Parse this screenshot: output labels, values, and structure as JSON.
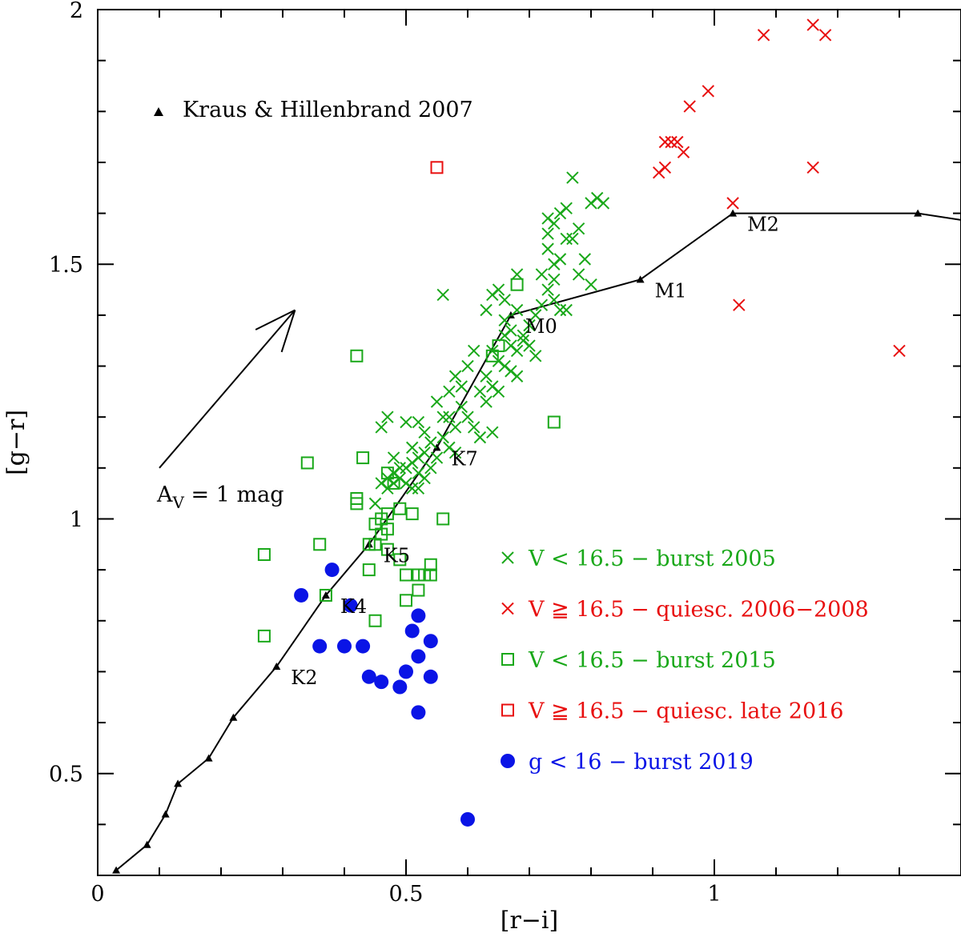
{
  "chart_data": {
    "type": "scatter",
    "xlabel": "[r−i]",
    "ylabel": "[g−r]",
    "xlim": [
      0,
      1.4
    ],
    "ylim": [
      0.3,
      2.0
    ],
    "xticks": [
      {
        "v": 0,
        "label": "0"
      },
      {
        "v": 0.5,
        "label": "0.5"
      },
      {
        "v": 1,
        "label": "1"
      }
    ],
    "yticks": [
      {
        "v": 0.5,
        "label": "0.5"
      },
      {
        "v": 1,
        "label": "1"
      },
      {
        "v": 1.5,
        "label": "1.5"
      },
      {
        "v": 2,
        "label": "2"
      }
    ],
    "annotations": {
      "reddening_label_main": "A",
      "reddening_label_sub": "V",
      "reddening_label_rest": " = 1 mag",
      "reddening_vector": {
        "from": [
          0.1,
          1.1
        ],
        "to": [
          0.32,
          1.41
        ]
      }
    },
    "colors": {
      "green": "#1aa81a",
      "red": "#e81010",
      "blue": "#0a14e6",
      "black": "#000000"
    },
    "kh_legend": "Kraus & Hillenbrand 2007",
    "sequence": {
      "name": "Kraus & Hillenbrand 2007",
      "points": [
        [
          0.03,
          0.31
        ],
        [
          0.08,
          0.36
        ],
        [
          0.11,
          0.42
        ],
        [
          0.13,
          0.48
        ],
        [
          0.18,
          0.53
        ],
        [
          0.22,
          0.61
        ],
        [
          0.29,
          0.71
        ],
        [
          0.37,
          0.85
        ],
        [
          0.44,
          0.95
        ],
        [
          0.55,
          1.14
        ],
        [
          0.67,
          1.4
        ],
        [
          0.88,
          1.47
        ],
        [
          1.03,
          1.6
        ],
        [
          1.33,
          1.6
        ],
        [
          1.4,
          1.587
        ]
      ],
      "spt_labels": [
        {
          "text": "K2",
          "x": 0.29,
          "y": 0.71
        },
        {
          "text": "K4",
          "x": 0.37,
          "y": 0.85
        },
        {
          "text": "K5",
          "x": 0.44,
          "y": 0.95
        },
        {
          "text": "K7",
          "x": 0.55,
          "y": 1.14
        },
        {
          "text": "M0",
          "x": 0.67,
          "y": 1.4
        },
        {
          "text": "M1",
          "x": 0.88,
          "y": 1.47
        },
        {
          "text": "M2",
          "x": 1.03,
          "y": 1.6
        }
      ]
    },
    "series": [
      {
        "name": "V < 16.5 − burst 2005",
        "marker": "x",
        "color": "green",
        "points": [
          [
            0.56,
            1.44
          ],
          [
            0.64,
            1.44
          ],
          [
            0.65,
            1.45
          ],
          [
            0.66,
            1.43
          ],
          [
            0.63,
            1.41
          ],
          [
            0.66,
            1.39
          ],
          [
            0.67,
            1.37
          ],
          [
            0.68,
            1.41
          ],
          [
            0.69,
            1.36
          ],
          [
            0.7,
            1.38
          ],
          [
            0.71,
            1.4
          ],
          [
            0.72,
            1.42
          ],
          [
            0.73,
            1.45
          ],
          [
            0.74,
            1.43
          ],
          [
            0.75,
            1.41
          ],
          [
            0.68,
            1.48
          ],
          [
            0.72,
            1.48
          ],
          [
            0.74,
            1.47
          ],
          [
            0.76,
            1.41
          ],
          [
            0.73,
            1.53
          ],
          [
            0.75,
            1.51
          ],
          [
            0.76,
            1.55
          ],
          [
            0.77,
            1.55
          ],
          [
            0.78,
            1.48
          ],
          [
            0.79,
            1.51
          ],
          [
            0.8,
            1.46
          ],
          [
            0.73,
            1.59
          ],
          [
            0.74,
            1.58
          ],
          [
            0.75,
            1.6
          ],
          [
            0.76,
            1.61
          ],
          [
            0.78,
            1.57
          ],
          [
            0.8,
            1.62
          ],
          [
            0.81,
            1.63
          ],
          [
            0.82,
            1.62
          ],
          [
            0.77,
            1.67
          ],
          [
            0.73,
            1.56
          ],
          [
            0.74,
            1.5
          ],
          [
            0.66,
            1.36
          ],
          [
            0.67,
            1.34
          ],
          [
            0.68,
            1.33
          ],
          [
            0.69,
            1.35
          ],
          [
            0.7,
            1.34
          ],
          [
            0.71,
            1.32
          ],
          [
            0.64,
            1.33
          ],
          [
            0.65,
            1.31
          ],
          [
            0.66,
            1.3
          ],
          [
            0.67,
            1.29
          ],
          [
            0.68,
            1.28
          ],
          [
            0.63,
            1.28
          ],
          [
            0.64,
            1.26
          ],
          [
            0.62,
            1.25
          ],
          [
            0.63,
            1.23
          ],
          [
            0.65,
            1.25
          ],
          [
            0.61,
            1.33
          ],
          [
            0.6,
            1.3
          ],
          [
            0.58,
            1.28
          ],
          [
            0.59,
            1.26
          ],
          [
            0.57,
            1.25
          ],
          [
            0.55,
            1.23
          ],
          [
            0.56,
            1.2
          ],
          [
            0.57,
            1.2
          ],
          [
            0.58,
            1.18
          ],
          [
            0.59,
            1.22
          ],
          [
            0.6,
            1.2
          ],
          [
            0.61,
            1.18
          ],
          [
            0.62,
            1.16
          ],
          [
            0.64,
            1.17
          ],
          [
            0.56,
            1.16
          ],
          [
            0.57,
            1.14
          ],
          [
            0.58,
            1.13
          ],
          [
            0.55,
            1.12
          ],
          [
            0.54,
            1.15
          ],
          [
            0.53,
            1.13
          ],
          [
            0.52,
            1.12
          ],
          [
            0.51,
            1.14
          ],
          [
            0.5,
            1.19
          ],
          [
            0.52,
            1.19
          ],
          [
            0.53,
            1.17
          ],
          [
            0.54,
            1.1
          ],
          [
            0.53,
            1.08
          ],
          [
            0.52,
            1.09
          ],
          [
            0.51,
            1.11
          ],
          [
            0.5,
            1.1
          ],
          [
            0.49,
            1.08
          ],
          [
            0.48,
            1.07
          ],
          [
            0.47,
            1.08
          ],
          [
            0.46,
            1.07
          ],
          [
            0.47,
            1.06
          ],
          [
            0.48,
            1.09
          ],
          [
            0.49,
            1.1
          ],
          [
            0.5,
            1.07
          ],
          [
            0.51,
            1.06
          ],
          [
            0.52,
            1.06
          ],
          [
            0.48,
            1.12
          ],
          [
            0.47,
            1.2
          ],
          [
            0.46,
            1.18
          ],
          [
            0.45,
            1.03
          ]
        ]
      },
      {
        "name": "V ≧ 16.5 − quiesc. 2006−2008",
        "marker": "x",
        "color": "red",
        "points": [
          [
            1.08,
            1.95
          ],
          [
            1.16,
            1.97
          ],
          [
            1.18,
            1.95
          ],
          [
            0.99,
            1.84
          ],
          [
            0.96,
            1.81
          ],
          [
            0.92,
            1.74
          ],
          [
            0.93,
            1.74
          ],
          [
            0.94,
            1.74
          ],
          [
            0.95,
            1.72
          ],
          [
            0.91,
            1.68
          ],
          [
            0.92,
            1.69
          ],
          [
            1.16,
            1.69
          ],
          [
            1.03,
            1.62
          ],
          [
            1.04,
            1.42
          ],
          [
            1.3,
            1.33
          ]
        ]
      },
      {
        "name": "V < 16.5 − burst 2015",
        "marker": "square",
        "color": "green",
        "points": [
          [
            0.68,
            1.46
          ],
          [
            0.64,
            1.32
          ],
          [
            0.65,
            1.34
          ],
          [
            0.42,
            1.32
          ],
          [
            0.74,
            1.19
          ],
          [
            0.34,
            1.11
          ],
          [
            0.43,
            1.12
          ],
          [
            0.47,
            1.09
          ],
          [
            0.48,
            1.07
          ],
          [
            0.42,
            1.03
          ],
          [
            0.42,
            1.04
          ],
          [
            0.45,
            0.99
          ],
          [
            0.46,
            1.0
          ],
          [
            0.47,
            1.01
          ],
          [
            0.49,
            1.02
          ],
          [
            0.51,
            1.01
          ],
          [
            0.56,
            1.0
          ],
          [
            0.44,
            0.95
          ],
          [
            0.47,
            0.94
          ],
          [
            0.45,
            0.95
          ],
          [
            0.49,
            0.92
          ],
          [
            0.46,
            0.97
          ],
          [
            0.47,
            0.98
          ],
          [
            0.5,
            0.89
          ],
          [
            0.52,
            0.86
          ],
          [
            0.52,
            0.89
          ],
          [
            0.53,
            0.89
          ],
          [
            0.54,
            0.89
          ],
          [
            0.54,
            0.91
          ],
          [
            0.44,
            0.9
          ],
          [
            0.36,
            0.95
          ],
          [
            0.27,
            0.93
          ],
          [
            0.37,
            0.85
          ],
          [
            0.5,
            0.84
          ],
          [
            0.45,
            0.8
          ],
          [
            0.27,
            0.77
          ]
        ]
      },
      {
        "name": "V ≧ 16.5 − quiesc. late 2016",
        "marker": "square",
        "color": "red",
        "points": [
          [
            0.55,
            1.69
          ]
        ]
      },
      {
        "name": "g < 16 − burst 2019",
        "marker": "circle",
        "color": "blue",
        "points": [
          [
            0.38,
            0.9
          ],
          [
            0.33,
            0.85
          ],
          [
            0.41,
            0.83
          ],
          [
            0.52,
            0.81
          ],
          [
            0.51,
            0.78
          ],
          [
            0.54,
            0.76
          ],
          [
            0.36,
            0.75
          ],
          [
            0.4,
            0.75
          ],
          [
            0.43,
            0.75
          ],
          [
            0.52,
            0.73
          ],
          [
            0.5,
            0.7
          ],
          [
            0.54,
            0.69
          ],
          [
            0.44,
            0.69
          ],
          [
            0.46,
            0.68
          ],
          [
            0.49,
            0.67
          ],
          [
            0.52,
            0.62
          ],
          [
            0.6,
            0.41
          ]
        ]
      }
    ],
    "legend": [
      {
        "marker": "x",
        "color": "green",
        "label": "V < 16.5 − burst 2005"
      },
      {
        "marker": "x",
        "color": "red",
        "label": "V ≧ 16.5 − quiesc. 2006−2008"
      },
      {
        "marker": "square",
        "color": "green",
        "label": "V < 16.5 − burst 2015"
      },
      {
        "marker": "square",
        "color": "red",
        "label": "V ≧ 16.5 − quiesc. late 2016"
      },
      {
        "marker": "circle",
        "color": "blue",
        "label": "g < 16 − burst 2019"
      }
    ]
  }
}
